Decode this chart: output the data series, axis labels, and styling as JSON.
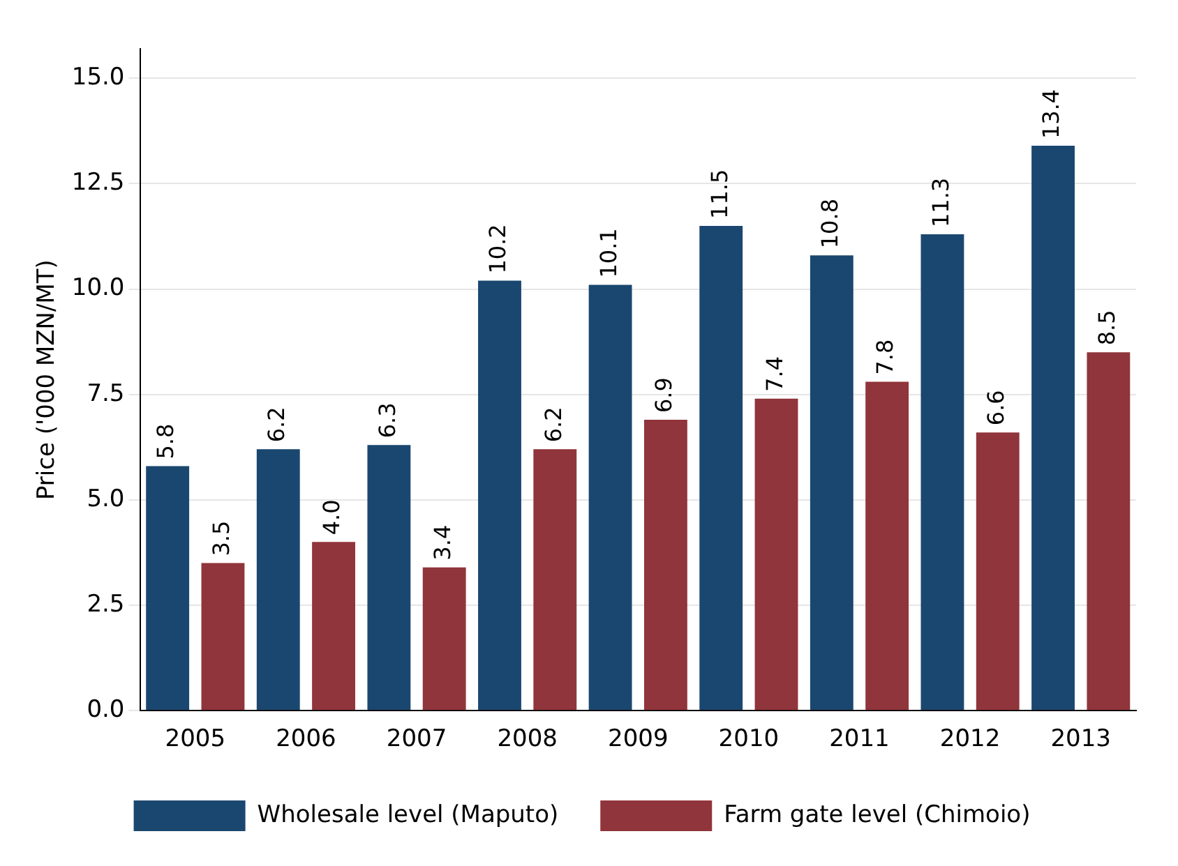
{
  "chart_data": {
    "type": "bar",
    "ylabel": "Price ('000 MZN/MT)",
    "categories": [
      "2005",
      "2006",
      "2007",
      "2008",
      "2009",
      "2010",
      "2011",
      "2012",
      "2013"
    ],
    "series": [
      {
        "name": "Wholesale level (Maputo)",
        "color": "#1a476f",
        "values": [
          5.8,
          6.2,
          6.3,
          10.2,
          10.1,
          11.5,
          10.8,
          11.3,
          13.4
        ],
        "value_labels": [
          "5.8",
          "6.2",
          "6.3",
          "10.2",
          "10.1",
          "11.5",
          "10.8",
          "11.3",
          "13.4"
        ]
      },
      {
        "name": "Farm gate level (Chimoio)",
        "color": "#90353b",
        "values": [
          3.5,
          4.0,
          3.4,
          6.2,
          6.9,
          7.4,
          7.8,
          6.6,
          8.5
        ],
        "value_labels": [
          "3.5",
          "4.0",
          "3.4",
          "6.2",
          "6.9",
          "7.4",
          "7.8",
          "6.6",
          "8.5"
        ]
      }
    ],
    "ylim": [
      0,
      15.7
    ],
    "yticks": [
      {
        "value": 0,
        "label": "0.0"
      },
      {
        "value": 2.5,
        "label": "2.5"
      },
      {
        "value": 5,
        "label": "5.0"
      },
      {
        "value": 7.5,
        "label": "7.5"
      },
      {
        "value": 10,
        "label": "10.0"
      },
      {
        "value": 12.5,
        "label": "12.5"
      },
      {
        "value": 15,
        "label": "15.0"
      }
    ],
    "grid": "y",
    "legend": "bottom"
  }
}
